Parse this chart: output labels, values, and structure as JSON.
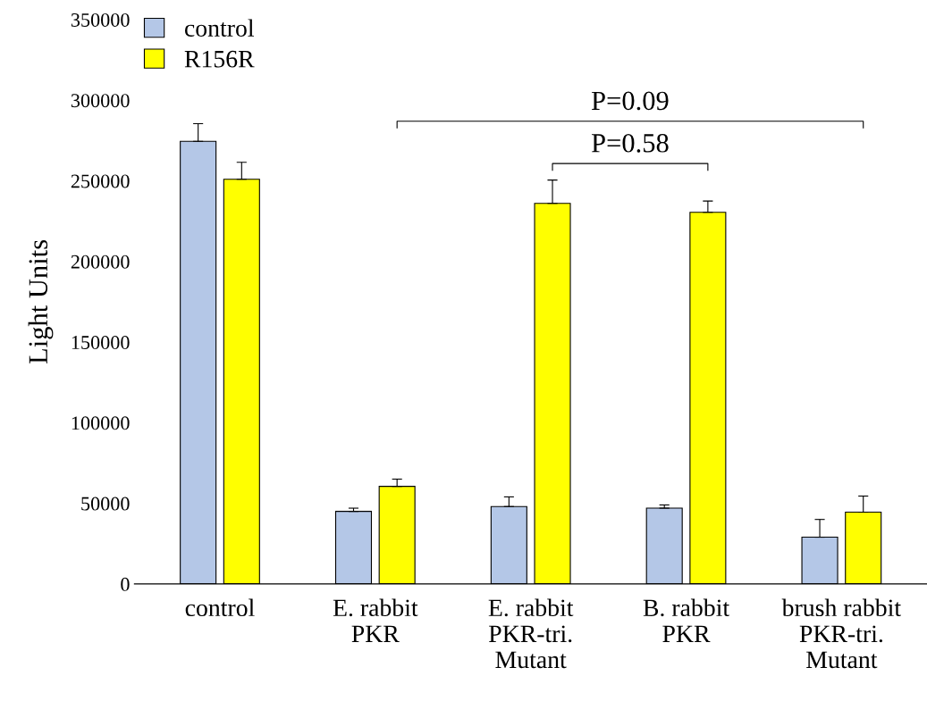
{
  "chart_data": {
    "type": "bar",
    "ylabel": "Light Units",
    "categories": [
      "control",
      "E. rabbit\nPKR",
      "E. rabbit\nPKR-tri.\nMutant",
      "B. rabbit\nPKR",
      "brush rabbit\nPKR-tri.\nMutant"
    ],
    "series": [
      {
        "name": "control",
        "color": "#b4c7e7",
        "values": [
          274500,
          45000,
          48000,
          47000,
          29000
        ],
        "errors": [
          [
            274500,
            285500
          ],
          [
            45000,
            47000
          ],
          [
            48000,
            54000
          ],
          [
            47000,
            49000
          ],
          [
            29000,
            40000
          ]
        ]
      },
      {
        "name": "R156R",
        "color": "#ffff00",
        "values": [
          251000,
          60500,
          236000,
          230500,
          44500
        ],
        "errors": [
          [
            251000,
            261500
          ],
          [
            60500,
            65000
          ],
          [
            236000,
            250500
          ],
          [
            230500,
            237500
          ],
          [
            44500,
            54500
          ]
        ]
      }
    ],
    "ylim": [
      0,
      350000
    ],
    "yticks": [
      0,
      50000,
      100000,
      150000,
      200000,
      250000,
      300000,
      350000
    ],
    "annotations": [
      "P=0.09",
      "P=0.58"
    ],
    "legend": "top left",
    "grid": false
  }
}
